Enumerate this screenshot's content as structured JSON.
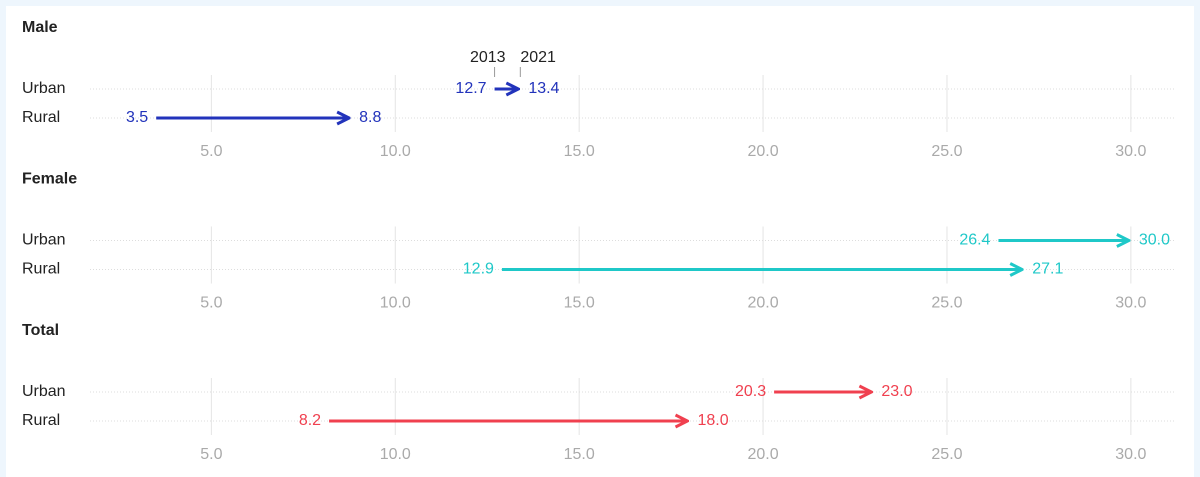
{
  "chart_data": [
    {
      "type": "arrow",
      "title": "Male",
      "categories": [
        "Urban",
        "Rural"
      ],
      "legend": [
        "2013",
        "2021"
      ],
      "start": {
        "values": [
          12.7,
          3.5
        ],
        "value_labels": [
          "12.7",
          "3.5"
        ]
      },
      "end": {
        "values": [
          13.4,
          8.8
        ],
        "value_labels": [
          "13.4",
          "8.8"
        ]
      },
      "color": "#2233bb",
      "xlim": [
        1.7,
        31.2
      ],
      "xticks": [
        {
          "value": 5,
          "label": "5.0"
        },
        {
          "value": 10,
          "label": "10.0"
        },
        {
          "value": 15,
          "label": "15.0"
        },
        {
          "value": 20,
          "label": "20.0"
        },
        {
          "value": 25,
          "label": "25.0"
        },
        {
          "value": 30,
          "label": "30.0"
        }
      ],
      "grid": true
    },
    {
      "type": "arrow",
      "title": "Female",
      "categories": [
        "Urban",
        "Rural"
      ],
      "start": {
        "values": [
          26.4,
          12.9
        ],
        "value_labels": [
          "26.4",
          "12.9"
        ]
      },
      "end": {
        "values": [
          30,
          27.1
        ],
        "value_labels": [
          "30.0",
          "27.1"
        ]
      },
      "color": "#1fc8c8",
      "xlim": [
        1.7,
        31.2
      ],
      "xticks": [
        {
          "value": 5,
          "label": "5.0"
        },
        {
          "value": 10,
          "label": "10.0"
        },
        {
          "value": 15,
          "label": "15.0"
        },
        {
          "value": 20,
          "label": "20.0"
        },
        {
          "value": 25,
          "label": "25.0"
        },
        {
          "value": 30,
          "label": "30.0"
        }
      ],
      "grid": true
    },
    {
      "type": "arrow",
      "title": "Total",
      "categories": [
        "Urban",
        "Rural"
      ],
      "start": {
        "values": [
          20.3,
          8.2
        ],
        "value_labels": [
          "20.3",
          "8.2"
        ]
      },
      "end": {
        "values": [
          23,
          18
        ],
        "value_labels": [
          "23.0",
          "18.0"
        ]
      },
      "color": "#f0404f",
      "xlim": [
        1.7,
        31.2
      ],
      "xticks": [
        {
          "value": 5,
          "label": "5.0"
        },
        {
          "value": 10,
          "label": "10.0"
        },
        {
          "value": 15,
          "label": "15.0"
        },
        {
          "value": 20,
          "label": "20.0"
        },
        {
          "value": 25,
          "label": "25.0"
        },
        {
          "value": 30,
          "label": "30.0"
        }
      ],
      "grid": true
    }
  ]
}
